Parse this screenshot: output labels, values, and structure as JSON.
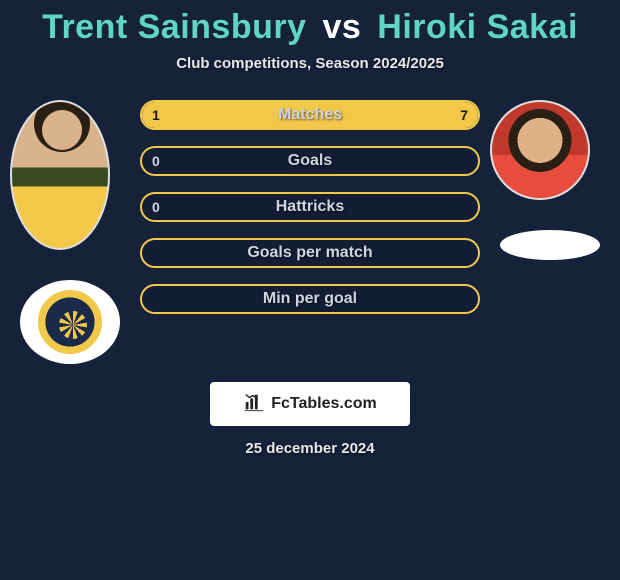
{
  "title": {
    "player1": "Trent Sainsbury",
    "vs": "vs",
    "player2": "Hiroki Sakai",
    "player_color": "#5fd4c8",
    "vs_color": "#ffffff",
    "fontsize": 34
  },
  "subtitle": "Club competitions, Season 2024/2025",
  "background_color": "#16213a",
  "bar_style": {
    "border_color": "#f2c84b",
    "fill_color": "#f2c84b",
    "label_color": "#cfd4e0",
    "value_color_inside": "#1a1a1a",
    "value_color_outside": "#cfd4e0",
    "height": 30,
    "radius": 15,
    "fontsize_label": 16,
    "fontsize_value": 14,
    "gap": 16,
    "track_width": 340
  },
  "stats": [
    {
      "label": "Matches",
      "left_value": "1",
      "right_value": "7",
      "left_fill_pct": 12.5,
      "right_fill_pct": 87.5
    },
    {
      "label": "Goals",
      "left_value": "0",
      "right_value": "",
      "left_fill_pct": 0,
      "right_fill_pct": 0
    },
    {
      "label": "Hattricks",
      "left_value": "0",
      "right_value": "",
      "left_fill_pct": 0,
      "right_fill_pct": 0
    },
    {
      "label": "Goals per match",
      "left_value": "",
      "right_value": "",
      "left_fill_pct": 0,
      "right_fill_pct": 0
    },
    {
      "label": "Min per goal",
      "left_value": "",
      "right_value": "",
      "left_fill_pct": 0,
      "right_fill_pct": 0
    }
  ],
  "logo": {
    "text": "FcTables.com",
    "icon": "bar-chart-icon",
    "box_bg": "#ffffff",
    "text_color": "#222222"
  },
  "date": "25 december 2024"
}
